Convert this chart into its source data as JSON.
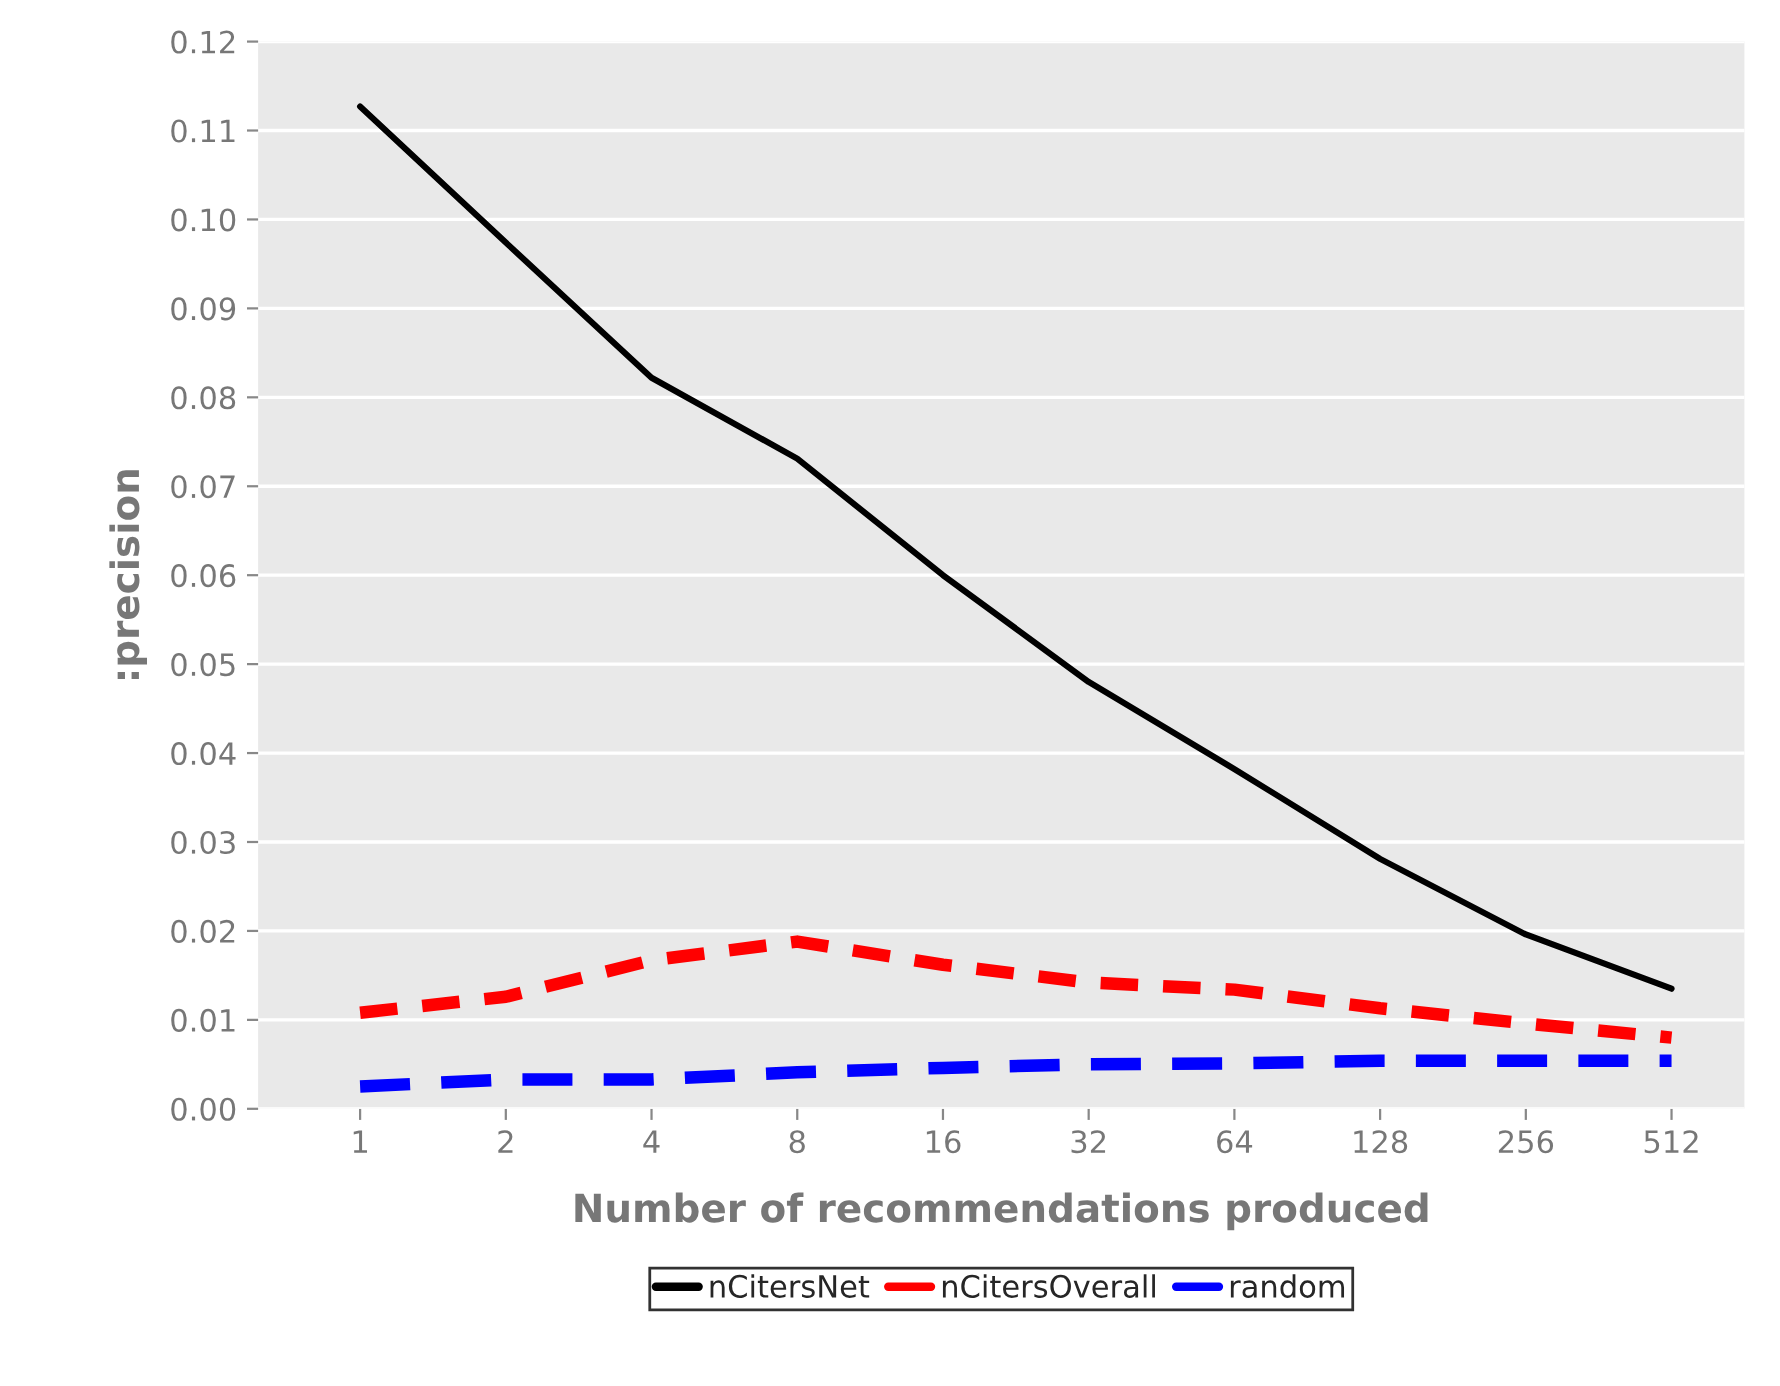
{
  "chart_data": {
    "type": "line",
    "xlabel": "Number of recommendations produced",
    "ylabel": ":precision",
    "categories": [
      "1",
      "2",
      "4",
      "8",
      "16",
      "32",
      "64",
      "128",
      "256",
      "512"
    ],
    "ylim": [
      0,
      0.12
    ],
    "yticks": [
      {
        "value": 0,
        "label": "0.00"
      },
      {
        "value": 0.01,
        "label": "0.01"
      },
      {
        "value": 0.02,
        "label": "0.02"
      },
      {
        "value": 0.03,
        "label": "0.03"
      },
      {
        "value": 0.04,
        "label": "0.04"
      },
      {
        "value": 0.05,
        "label": "0.05"
      },
      {
        "value": 0.06,
        "label": "0.06"
      },
      {
        "value": 0.07,
        "label": "0.07"
      },
      {
        "value": 0.08,
        "label": "0.08"
      },
      {
        "value": 0.09,
        "label": "0.09"
      },
      {
        "value": 0.1,
        "label": "0.10"
      },
      {
        "value": 0.11,
        "label": "0.11"
      },
      {
        "value": 0.12,
        "label": "0.12"
      }
    ],
    "grid": "y",
    "legend": "bottom",
    "marker": "none",
    "series": [
      {
        "name": "nCitersNet",
        "color": "#000000",
        "line_style": "solid",
        "values": [
          0.1127,
          0.0974,
          0.0822,
          0.0731,
          0.06,
          0.048,
          0.0382,
          0.0281,
          0.0196,
          0.0135
        ]
      },
      {
        "name": "nCitersOverall",
        "color": "#ff0000",
        "line_style": "dashed",
        "values": [
          0.0108,
          0.0126,
          0.0167,
          0.0188,
          0.0162,
          0.0142,
          0.0134,
          0.0113,
          0.0096,
          0.008
        ]
      },
      {
        "name": "random",
        "color": "#0000ff",
        "line_style": "dashed",
        "values": [
          0.0025,
          0.0033,
          0.0033,
          0.0041,
          0.0046,
          0.005,
          0.0051,
          0.0054,
          0.0054,
          0.0054
        ]
      }
    ]
  }
}
